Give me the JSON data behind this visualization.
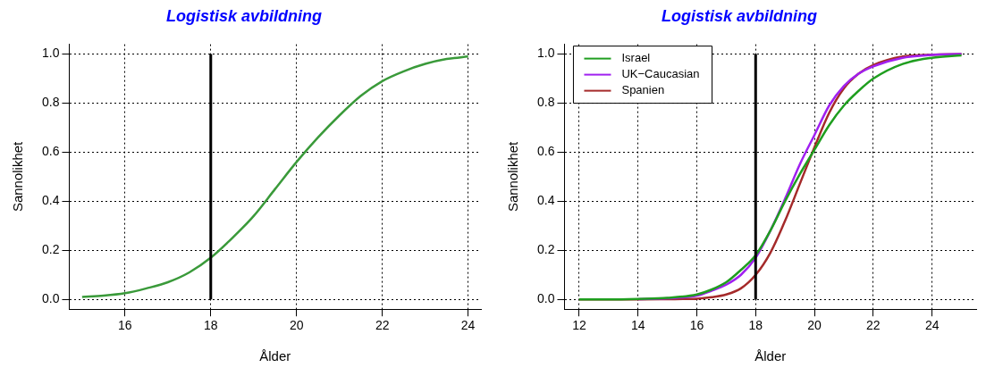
{
  "chart_data": [
    {
      "type": "line",
      "title": "Logistisk avbildning",
      "xlabel": "Ålder",
      "ylabel": "Sannolikhet",
      "x": [
        15,
        15.5,
        16,
        16.5,
        17,
        17.5,
        18,
        18.5,
        19,
        19.5,
        20,
        20.5,
        21,
        21.5,
        22,
        22.5,
        23,
        23.5,
        24
      ],
      "series": [
        {
          "color": "#3a9a3a",
          "values": [
            0.01,
            0.015,
            0.025,
            0.045,
            0.07,
            0.11,
            0.17,
            0.25,
            0.34,
            0.45,
            0.56,
            0.66,
            0.75,
            0.83,
            0.89,
            0.93,
            0.96,
            0.98,
            0.99
          ]
        }
      ],
      "xlim": [
        14.7,
        24.3
      ],
      "xticks": [
        16,
        18,
        20,
        22,
        24
      ],
      "ylim": [
        -0.04,
        1.04
      ],
      "yticks": [
        {
          "value": 0,
          "label": "0.0"
        },
        {
          "value": 0.2,
          "label": "0.2"
        },
        {
          "value": 0.4,
          "label": "0.4"
        },
        {
          "value": 0.6,
          "label": "0.6"
        },
        {
          "value": 0.8,
          "label": "0.8"
        },
        {
          "value": 1,
          "label": "1.0"
        }
      ],
      "ref_lines": [
        {
          "axis": "x",
          "value": 18,
          "color": "#000000"
        }
      ],
      "grid": true,
      "legend": false
    },
    {
      "type": "line",
      "title": "Logistisk avbildning",
      "xlabel": "Ålder",
      "ylabel": "Sannolikhet",
      "x": [
        12,
        13,
        14,
        15,
        16,
        16.5,
        17,
        17.5,
        18,
        18.5,
        19,
        19.5,
        20,
        20.5,
        21,
        21.5,
        22,
        23,
        24,
        25
      ],
      "series": [
        {
          "name": "Israel",
          "color": "#1f9e1f",
          "values": [
            0,
            0,
            0.002,
            0.006,
            0.02,
            0.04,
            0.07,
            0.12,
            0.18,
            0.28,
            0.4,
            0.51,
            0.61,
            0.71,
            0.79,
            0.85,
            0.9,
            0.96,
            0.985,
            0.995
          ]
        },
        {
          "name": "UK−Caucasian",
          "color": "#a020f0",
          "values": [
            null,
            null,
            0.001,
            0.004,
            0.015,
            0.035,
            0.06,
            0.1,
            0.17,
            0.28,
            0.41,
            0.55,
            0.67,
            0.79,
            0.87,
            0.92,
            0.95,
            0.985,
            0.997,
            1
          ]
        },
        {
          "name": "Spanien",
          "color": "#a52a2a",
          "values": [
            0,
            0,
            0,
            0.001,
            0.003,
            0.009,
            0.02,
            0.045,
            0.1,
            0.19,
            0.32,
            0.47,
            0.62,
            0.76,
            0.86,
            0.92,
            0.955,
            0.99,
            0.998,
            1
          ]
        }
      ],
      "xlim": [
        11.5,
        25.5
      ],
      "xticks": [
        12,
        14,
        16,
        18,
        20,
        22,
        24
      ],
      "ylim": [
        -0.04,
        1.04
      ],
      "yticks": [
        {
          "value": 0,
          "label": "0.0"
        },
        {
          "value": 0.2,
          "label": "0.2"
        },
        {
          "value": 0.4,
          "label": "0.4"
        },
        {
          "value": 0.6,
          "label": "0.6"
        },
        {
          "value": 0.8,
          "label": "0.8"
        },
        {
          "value": 1,
          "label": "1.0"
        }
      ],
      "ref_lines": [
        {
          "axis": "x",
          "value": 18,
          "color": "#000000"
        }
      ],
      "grid": true,
      "legend": "top left"
    }
  ]
}
